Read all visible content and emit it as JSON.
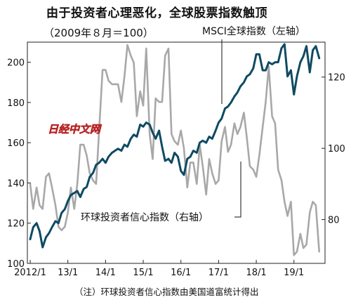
{
  "title": "由于投资者心理恶化，全球股票指数触顶",
  "subtitle": "（2009年８月＝100）",
  "note": "（注）环球投资者信心指数由美国道富统计得出",
  "watermark": "日经中文网",
  "chart_data": {
    "type": "line",
    "x_ticks": [
      "2012/1",
      "13/1",
      "14/1",
      "15/1",
      "16/1",
      "17/1",
      "18/1",
      "19/1"
    ],
    "x_range": [
      2012.0,
      2019.75
    ],
    "y_left": {
      "ticks": [
        100,
        120,
        140,
        160,
        180,
        200
      ],
      "ylim": [
        100,
        210
      ]
    },
    "y_right": {
      "ticks": [
        80,
        100,
        120
      ],
      "ylim": [
        67.7,
        129.8
      ]
    },
    "series": [
      {
        "name": "MSCI全球指数（左轴）",
        "axis": "left",
        "color": "#0f4a63",
        "x": [
          2012.0,
          2012.08,
          2012.17,
          2012.25,
          2012.33,
          2012.42,
          2012.5,
          2012.58,
          2012.67,
          2012.75,
          2012.83,
          2012.92,
          2013.0,
          2013.08,
          2013.17,
          2013.25,
          2013.33,
          2013.42,
          2013.5,
          2013.58,
          2013.67,
          2013.75,
          2013.83,
          2013.92,
          2014.0,
          2014.08,
          2014.17,
          2014.25,
          2014.33,
          2014.42,
          2014.5,
          2014.58,
          2014.67,
          2014.75,
          2014.83,
          2014.92,
          2015.0,
          2015.08,
          2015.17,
          2015.25,
          2015.33,
          2015.42,
          2015.5,
          2015.58,
          2015.67,
          2015.75,
          2015.83,
          2015.92,
          2016.0,
          2016.08,
          2016.17,
          2016.25,
          2016.33,
          2016.42,
          2016.5,
          2016.58,
          2016.67,
          2016.75,
          2016.83,
          2016.92,
          2017.0,
          2017.08,
          2017.17,
          2017.25,
          2017.33,
          2017.42,
          2017.5,
          2017.58,
          2017.67,
          2017.75,
          2017.83,
          2017.92,
          2018.0,
          2018.08,
          2018.17,
          2018.25,
          2018.33,
          2018.42,
          2018.5,
          2018.58,
          2018.67,
          2018.75,
          2018.83,
          2018.92,
          2019.0,
          2019.08,
          2019.17,
          2019.25,
          2019.33,
          2019.42,
          2019.5,
          2019.58,
          2019.67
        ],
        "values": [
          112,
          118,
          120,
          116,
          108,
          113,
          115,
          118,
          121,
          120,
          125,
          127,
          131,
          134,
          135,
          136,
          133,
          137,
          138,
          143,
          145,
          149,
          150,
          152,
          150,
          153,
          155,
          156,
          157,
          156,
          159,
          158,
          162,
          164,
          163,
          169,
          168,
          170,
          169,
          165,
          162,
          166,
          158,
          151,
          152,
          150,
          155,
          153,
          146,
          144,
          152,
          153,
          156,
          155,
          160,
          161,
          160,
          163,
          162,
          166,
          170,
          172,
          177,
          178,
          180,
          183,
          185,
          188,
          190,
          193,
          194,
          197,
          204,
          204,
          196,
          196,
          200,
          199,
          200,
          200,
          207,
          209,
          193,
          196,
          184,
          193,
          200,
          203,
          208,
          195,
          206,
          208,
          202
        ]
      },
      {
        "name": "环球投资者信心指数（右轴）",
        "axis": "right",
        "color": "#a8a8a8",
        "x": [
          2012.0,
          2012.08,
          2012.17,
          2012.25,
          2012.33,
          2012.42,
          2012.5,
          2012.58,
          2012.67,
          2012.75,
          2012.83,
          2012.92,
          2013.0,
          2013.08,
          2013.17,
          2013.25,
          2013.33,
          2013.42,
          2013.5,
          2013.58,
          2013.67,
          2013.75,
          2013.83,
          2013.92,
          2014.0,
          2014.08,
          2014.17,
          2014.25,
          2014.33,
          2014.42,
          2014.5,
          2014.58,
          2014.67,
          2014.75,
          2014.83,
          2014.92,
          2015.0,
          2015.08,
          2015.17,
          2015.25,
          2015.33,
          2015.42,
          2015.5,
          2015.58,
          2015.67,
          2015.75,
          2015.83,
          2015.92,
          2016.0,
          2016.08,
          2016.17,
          2016.25,
          2016.33,
          2016.42,
          2016.5,
          2016.58,
          2016.67,
          2016.75,
          2016.83,
          2016.92,
          2017.0,
          2017.08,
          2017.17,
          2017.25,
          2017.33,
          2017.42,
          2017.5,
          2017.58,
          2017.67,
          2017.75,
          2017.83,
          2017.92,
          2018.0,
          2018.08,
          2018.17,
          2018.25,
          2018.33,
          2018.42,
          2018.5,
          2018.58,
          2018.67,
          2018.75,
          2018.83,
          2018.92,
          2019.0,
          2019.08,
          2019.17,
          2019.25,
          2019.33,
          2019.42,
          2019.5,
          2019.58,
          2019.67
        ],
        "values": [
          90,
          83,
          89,
          84,
          83,
          92,
          93,
          89,
          84,
          78,
          77,
          78,
          82,
          89,
          83,
          90,
          101,
          101,
          98,
          93,
          91,
          90,
          105,
          122,
          122,
          119,
          118,
          118,
          118,
          113,
          120,
          129,
          126,
          124,
          109,
          116,
          112,
          128,
          104,
          97,
          114,
          113,
          113,
          126,
          128,
          104,
          102,
          101,
          105,
          100,
          89,
          96,
          96,
          90,
          101,
          95,
          87,
          97,
          93,
          90,
          91,
          102,
          106,
          99,
          101,
          107,
          104,
          106,
          110,
          103,
          95,
          94,
          92,
          98,
          106,
          113,
          123,
          109,
          107,
          94,
          91,
          85,
          81,
          85,
          70,
          71,
          76,
          72,
          73,
          82,
          85,
          84,
          71
        ]
      }
    ],
    "grid": false
  },
  "labels": {
    "msci": "MSCI全球指数（左轴）",
    "confidence": "环球投资者信心指数（右轴）"
  }
}
